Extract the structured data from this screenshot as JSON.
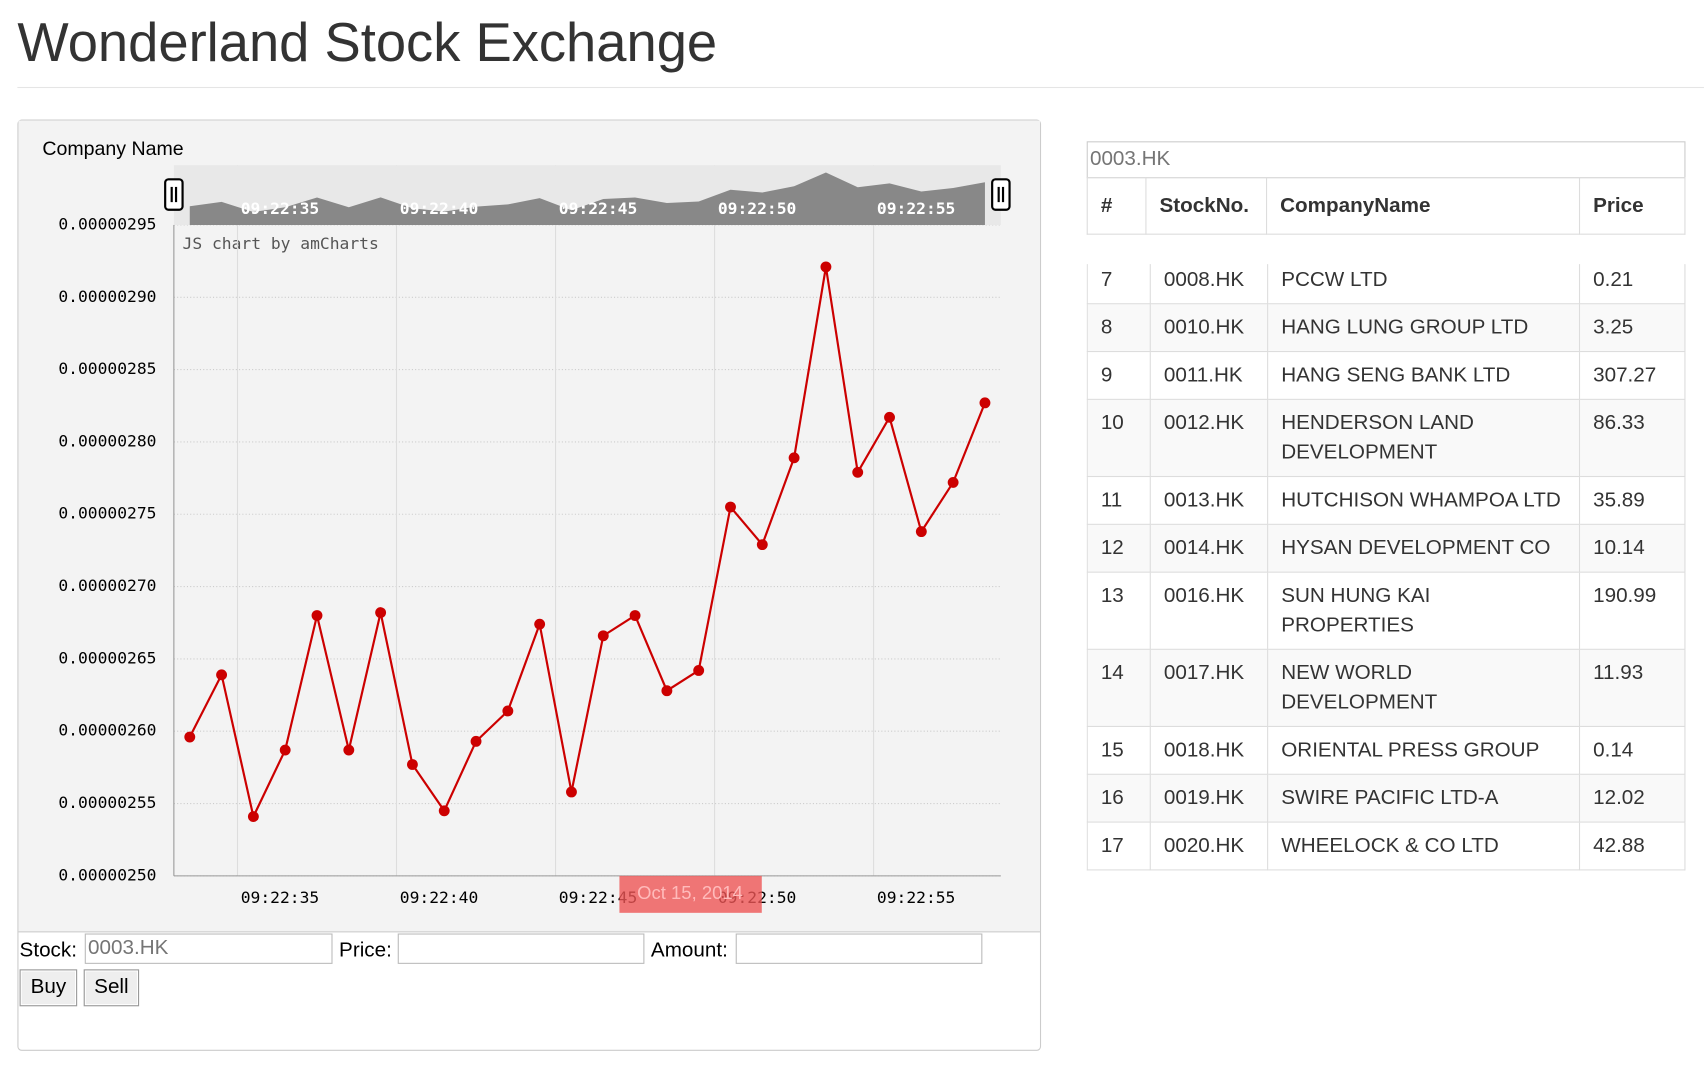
{
  "title": "Wonderland Stock Exchange",
  "chart_data": {
    "type": "line",
    "title": "Company Name",
    "credit": "JS chart by amCharts",
    "cursor_label": "Oct 15, 2014",
    "x": [
      33.5,
      34.5,
      35.5,
      36.5,
      37.5,
      38.5,
      39.5,
      40.5,
      41.5,
      42.5,
      43.5,
      44.5,
      45.5,
      46.5,
      47.5,
      48.5,
      49.5,
      50.5,
      51.5,
      52.5,
      53.5,
      54.5,
      55.5,
      56.5,
      57.5,
      58.5
    ],
    "series": [
      {
        "color": "#cc0000",
        "values": [
          2.596e-06,
          2.639e-06,
          2.541e-06,
          2.587e-06,
          2.68e-06,
          2.587e-06,
          2.682e-06,
          2.577e-06,
          2.545e-06,
          2.593e-06,
          2.614e-06,
          2.674e-06,
          2.558e-06,
          2.666e-06,
          2.68e-06,
          2.628e-06,
          2.642e-06,
          2.755e-06,
          2.729e-06,
          2.789e-06,
          2.921e-06,
          2.779e-06,
          2.817e-06,
          2.738e-06,
          2.772e-06,
          2.827e-06
        ]
      }
    ],
    "xlim": [
      33,
      59
    ],
    "xticks": [
      {
        "value": 35,
        "label": "09:22:35"
      },
      {
        "value": 40,
        "label": "09:22:40"
      },
      {
        "value": 45,
        "label": "09:22:45"
      },
      {
        "value": 50,
        "label": "09:22:50"
      },
      {
        "value": 55,
        "label": "09:22:55"
      }
    ],
    "ylim": [
      2.5e-06,
      2.95e-06
    ],
    "yticks": [
      {
        "value": 2.5e-06,
        "label": "0.00000250"
      },
      {
        "value": 2.55e-06,
        "label": "0.00000255"
      },
      {
        "value": 2.6e-06,
        "label": "0.00000260"
      },
      {
        "value": 2.65e-06,
        "label": "0.00000265"
      },
      {
        "value": 2.7e-06,
        "label": "0.00000270"
      },
      {
        "value": 2.75e-06,
        "label": "0.00000275"
      },
      {
        "value": 2.8e-06,
        "label": "0.00000280"
      },
      {
        "value": 2.85e-06,
        "label": "0.00000285"
      },
      {
        "value": 2.9e-06,
        "label": "0.00000290"
      },
      {
        "value": 2.95e-06,
        "label": "0.00000295"
      }
    ],
    "grid": true
  },
  "form": {
    "stock_label": "Stock:",
    "stock_placeholder": "0003.HK",
    "price_label": "Price:",
    "amount_label": "Amount:",
    "buy": "Buy",
    "sell": "Sell"
  },
  "table": {
    "search_placeholder": "0003.HK",
    "columns": [
      "#",
      "StockNo.",
      "CompanyName",
      "Price"
    ],
    "rows": [
      [
        "7",
        "0008.HK",
        "PCCW LTD",
        "0.21"
      ],
      [
        "8",
        "0010.HK",
        "HANG LUNG GROUP LTD",
        "3.25"
      ],
      [
        "9",
        "0011.HK",
        "HANG SENG BANK LTD",
        "307.27"
      ],
      [
        "10",
        "0012.HK",
        "HENDERSON LAND DEVELOPMENT",
        "86.33"
      ],
      [
        "11",
        "0013.HK",
        "HUTCHISON WHAMPOA LTD",
        "35.89"
      ],
      [
        "12",
        "0014.HK",
        "HYSAN DEVELOPMENT CO",
        "10.14"
      ],
      [
        "13",
        "0016.HK",
        "SUN HUNG KAI PROPERTIES",
        "190.99"
      ],
      [
        "14",
        "0017.HK",
        "NEW WORLD DEVELOPMENT",
        "11.93"
      ],
      [
        "15",
        "0018.HK",
        "ORIENTAL PRESS GROUP",
        "0.14"
      ],
      [
        "16",
        "0019.HK",
        "SWIRE PACIFIC LTD-A",
        "12.02"
      ],
      [
        "17",
        "0020.HK",
        "WHEELOCK & CO LTD",
        "42.88"
      ]
    ]
  }
}
